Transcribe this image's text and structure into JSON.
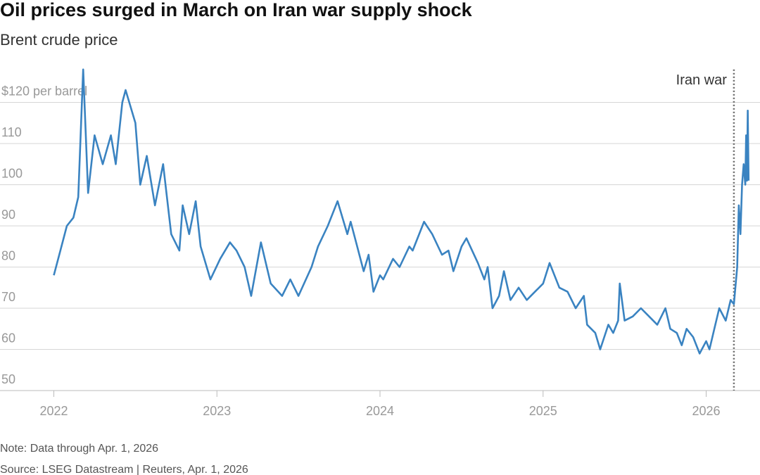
{
  "chart_data": {
    "type": "line",
    "title": "Oil prices surged in March on Iran war supply shock",
    "subtitle": "Brent crude price",
    "note": "Note: Data through Apr. 1, 2026",
    "source": "Source: LSEG Datastream | Reuters, Apr. 1, 2026",
    "color": "#3a83c1",
    "grid": true,
    "xlim": [
      2021.67,
      2026.33
    ],
    "xticks": [
      2022,
      2023,
      2024,
      2025,
      2026
    ],
    "ylim": [
      50,
      128
    ],
    "yticks": [
      50,
      60,
      70,
      80,
      90,
      100,
      110,
      {
        "value": 120,
        "label": "$120 per barrel"
      }
    ],
    "annotations": [
      {
        "text": "Iran war",
        "x": 2026.17
      }
    ],
    "x": [
      2022.0,
      2022.04,
      2022.08,
      2022.12,
      2022.15,
      2022.18,
      2022.21,
      2022.25,
      2022.3,
      2022.35,
      2022.38,
      2022.42,
      2022.44,
      2022.5,
      2022.53,
      2022.57,
      2022.62,
      2022.67,
      2022.72,
      2022.77,
      2022.79,
      2022.83,
      2022.87,
      2022.9,
      2022.96,
      2023.02,
      2023.08,
      2023.12,
      2023.17,
      2023.21,
      2023.27,
      2023.33,
      2023.4,
      2023.45,
      2023.5,
      2023.58,
      2023.62,
      2023.68,
      2023.74,
      2023.8,
      2023.82,
      2023.86,
      2023.9,
      2023.93,
      2023.96,
      2024.0,
      2024.02,
      2024.08,
      2024.12,
      2024.18,
      2024.2,
      2024.27,
      2024.32,
      2024.38,
      2024.42,
      2024.45,
      2024.5,
      2024.53,
      2024.6,
      2024.64,
      2024.66,
      2024.69,
      2024.73,
      2024.76,
      2024.8,
      2024.85,
      2024.9,
      2024.95,
      2025.0,
      2025.04,
      2025.1,
      2025.15,
      2025.2,
      2025.25,
      2025.27,
      2025.32,
      2025.35,
      2025.4,
      2025.43,
      2025.46,
      2025.47,
      2025.5,
      2025.55,
      2025.6,
      2025.65,
      2025.7,
      2025.75,
      2025.78,
      2025.82,
      2025.85,
      2025.88,
      2025.92,
      2025.96,
      2026.0,
      2026.02,
      2026.05,
      2026.08,
      2026.12,
      2026.15,
      2026.17,
      2026.19,
      2026.2,
      2026.21,
      2026.22,
      2026.23,
      2026.24,
      2026.245,
      2026.25,
      2026.255,
      2026.26
    ],
    "values": [
      78,
      84,
      90,
      92,
      97,
      128,
      98,
      112,
      105,
      112,
      105,
      120,
      123,
      115,
      100,
      107,
      95,
      105,
      88,
      84,
      95,
      88,
      96,
      85,
      77,
      82,
      86,
      84,
      80,
      73,
      86,
      76,
      73,
      77,
      73,
      80,
      85,
      90,
      96,
      88,
      91,
      85,
      79,
      83,
      74,
      78,
      77,
      82,
      80,
      85,
      84,
      91,
      88,
      83,
      84,
      79,
      85,
      87,
      81,
      77,
      80,
      70,
      73,
      79,
      72,
      75,
      72,
      74,
      76,
      81,
      75,
      74,
      70,
      73,
      66,
      64,
      60,
      66,
      64,
      67,
      76,
      67,
      68,
      70,
      68,
      66,
      70,
      65,
      64,
      61,
      65,
      63,
      59,
      62,
      60,
      65,
      70,
      67,
      72,
      71,
      80,
      95,
      88,
      100,
      105,
      100,
      112,
      101,
      118,
      101
    ]
  }
}
